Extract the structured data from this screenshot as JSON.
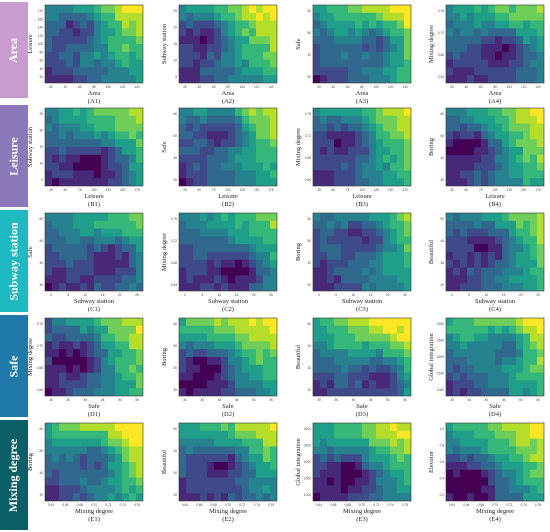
{
  "colors": {
    "row_bands": [
      "#c99bd0",
      "#8b78b8",
      "#1fb9c2",
      "#1e79a8",
      "#0b5f67"
    ],
    "colormap": [
      "#440154",
      "#482878",
      "#3e4a89",
      "#31688e",
      "#26828e",
      "#1f9e89",
      "#35b779",
      "#6ece58",
      "#b5de2b",
      "#fde725"
    ]
  },
  "rows": [
    {
      "label": "Area"
    },
    {
      "label": "Leisure"
    },
    {
      "label": "Subway station"
    },
    {
      "label": "Safe"
    },
    {
      "label": "Mixing degree"
    }
  ],
  "chart_data": {
    "type": "heatmap",
    "panels": [
      {
        "id": "(A1)",
        "xlabel": "Area",
        "ylabel": "Leisure",
        "xticks": [
          "20",
          "40",
          "60",
          "80",
          "100",
          "120",
          "140"
        ],
        "yticks": [
          "20",
          "40",
          "60",
          "80",
          "100",
          "120",
          "140",
          "160",
          "175"
        ]
      },
      {
        "id": "(A2)",
        "xlabel": "Area",
        "ylabel": "Subway station",
        "xticks": [
          "20",
          "40",
          "60",
          "80",
          "100",
          "120",
          "140"
        ],
        "yticks": [
          "5",
          "10",
          "15",
          "20",
          "25"
        ]
      },
      {
        "id": "(A3)",
        "xlabel": "Area",
        "ylabel": "Safe",
        "xticks": [
          "20",
          "40",
          "60",
          "80",
          "100",
          "120",
          "140"
        ],
        "yticks": [
          "30",
          "40",
          "50",
          "60"
        ]
      },
      {
        "id": "(A4)",
        "xlabel": "Area",
        "ylabel": "Mixing degree",
        "xticks": [
          "20",
          "40",
          "60",
          "80",
          "100",
          "120",
          "140"
        ],
        "yticks": [
          "0.64",
          "0.68",
          "0.72",
          "0.76"
        ]
      },
      {
        "id": "(B1)",
        "xlabel": "Leisure",
        "ylabel": "Subway station",
        "xticks": [
          "25",
          "50",
          "75",
          "100",
          "125",
          "150",
          "175"
        ],
        "yticks": [
          "5",
          "10",
          "15",
          "20",
          "25"
        ]
      },
      {
        "id": "(B2)",
        "xlabel": "Leisure",
        "ylabel": "Safe",
        "xticks": [
          "25",
          "50",
          "75",
          "100",
          "125",
          "150",
          "175"
        ],
        "yticks": [
          "30",
          "40",
          "50",
          "60"
        ]
      },
      {
        "id": "(B3)",
        "xlabel": "Leisure",
        "ylabel": "Mixing degree",
        "xticks": [
          "25",
          "50",
          "75",
          "100",
          "125",
          "150",
          "175"
        ],
        "yticks": [
          "0.64",
          "0.68",
          "0.72",
          "0.76"
        ]
      },
      {
        "id": "(B4)",
        "xlabel": "Leisure",
        "ylabel": "Boring",
        "xticks": [
          "25",
          "50",
          "75",
          "100",
          "125",
          "150",
          "175"
        ],
        "yticks": [
          "30",
          "40",
          "50",
          "60"
        ]
      },
      {
        "id": "(C1)",
        "xlabel": "Subway station",
        "ylabel": "Safe",
        "xticks": [
          "0",
          "5",
          "10",
          "15",
          "20",
          "25"
        ],
        "yticks": [
          "30",
          "40",
          "50",
          "60"
        ]
      },
      {
        "id": "(C2)",
        "xlabel": "Subway station",
        "ylabel": "Mixing degree",
        "xticks": [
          "0",
          "5",
          "10",
          "15",
          "20",
          "25"
        ],
        "yticks": [
          "0.64",
          "0.68",
          "0.72",
          "0.76"
        ]
      },
      {
        "id": "(C3)",
        "xlabel": "Subway station",
        "ylabel": "Boring",
        "xticks": [
          "0",
          "5",
          "10",
          "15",
          "20",
          "25"
        ],
        "yticks": [
          "30",
          "40",
          "50",
          "60"
        ]
      },
      {
        "id": "(C4)",
        "xlabel": "Subway station",
        "ylabel": "Beautiful",
        "xticks": [
          "0",
          "5",
          "10",
          "15",
          "20",
          "25"
        ],
        "yticks": [
          "20",
          "30",
          "40",
          "50"
        ]
      },
      {
        "id": "(D1)",
        "xlabel": "Safe",
        "ylabel": "Mixing degree",
        "xticks": [
          "30",
          "35",
          "40",
          "45",
          "50",
          "55"
        ],
        "yticks": [
          "0.64",
          "0.68",
          "0.72",
          "0.76"
        ]
      },
      {
        "id": "(D2)",
        "xlabel": "Safe",
        "ylabel": "Boring",
        "xticks": [
          "30",
          "35",
          "40",
          "45",
          "50",
          "55"
        ],
        "yticks": [
          "30",
          "40",
          "50",
          "60"
        ]
      },
      {
        "id": "(D3)",
        "xlabel": "Safe",
        "ylabel": "Beautiful",
        "xticks": [
          "30",
          "35",
          "40",
          "45",
          "50",
          "55"
        ],
        "yticks": [
          "20",
          "30",
          "40",
          "50"
        ]
      },
      {
        "id": "(D4)",
        "xlabel": "Safe",
        "ylabel": "Global integration",
        "xticks": [
          "30",
          "35",
          "40",
          "45",
          "50",
          "55"
        ],
        "yticks": [
          "1000",
          "1500",
          "2000",
          "2500",
          "3000"
        ]
      },
      {
        "id": "(E1)",
        "xlabel": "Mixing degree",
        "ylabel": "Boring",
        "xticks": [
          "0.64",
          "0.66",
          "0.68",
          "0.70",
          "0.72",
          "0.74",
          "0.76"
        ],
        "yticks": [
          "30",
          "40",
          "50",
          "60"
        ]
      },
      {
        "id": "(E2)",
        "xlabel": "Mixing degree",
        "ylabel": "Beautiful",
        "xticks": [
          "0.64",
          "0.66",
          "0.68",
          "0.70",
          "0.72",
          "0.74",
          "0.76"
        ],
        "yticks": [
          "20",
          "30",
          "40",
          "50"
        ]
      },
      {
        "id": "(E3)",
        "xlabel": "Mixing degree",
        "ylabel": "Global integration",
        "xticks": [
          "0.64",
          "0.66",
          "0.68",
          "0.70",
          "0.72",
          "0.74",
          "0.76"
        ],
        "yticks": [
          "1000",
          "1500",
          "2000",
          "2500",
          "3000"
        ]
      },
      {
        "id": "(E4)",
        "xlabel": "Mixing degree",
        "ylabel": "Elevator",
        "xticks": [
          "0.64",
          "0.66",
          "0.68",
          "0.70",
          "0.72",
          "0.74",
          "0.76"
        ],
        "yticks": [
          "0.2",
          "0.4",
          "0.6",
          "0.8",
          "1.0"
        ]
      }
    ],
    "grid": false,
    "legend": "none"
  }
}
